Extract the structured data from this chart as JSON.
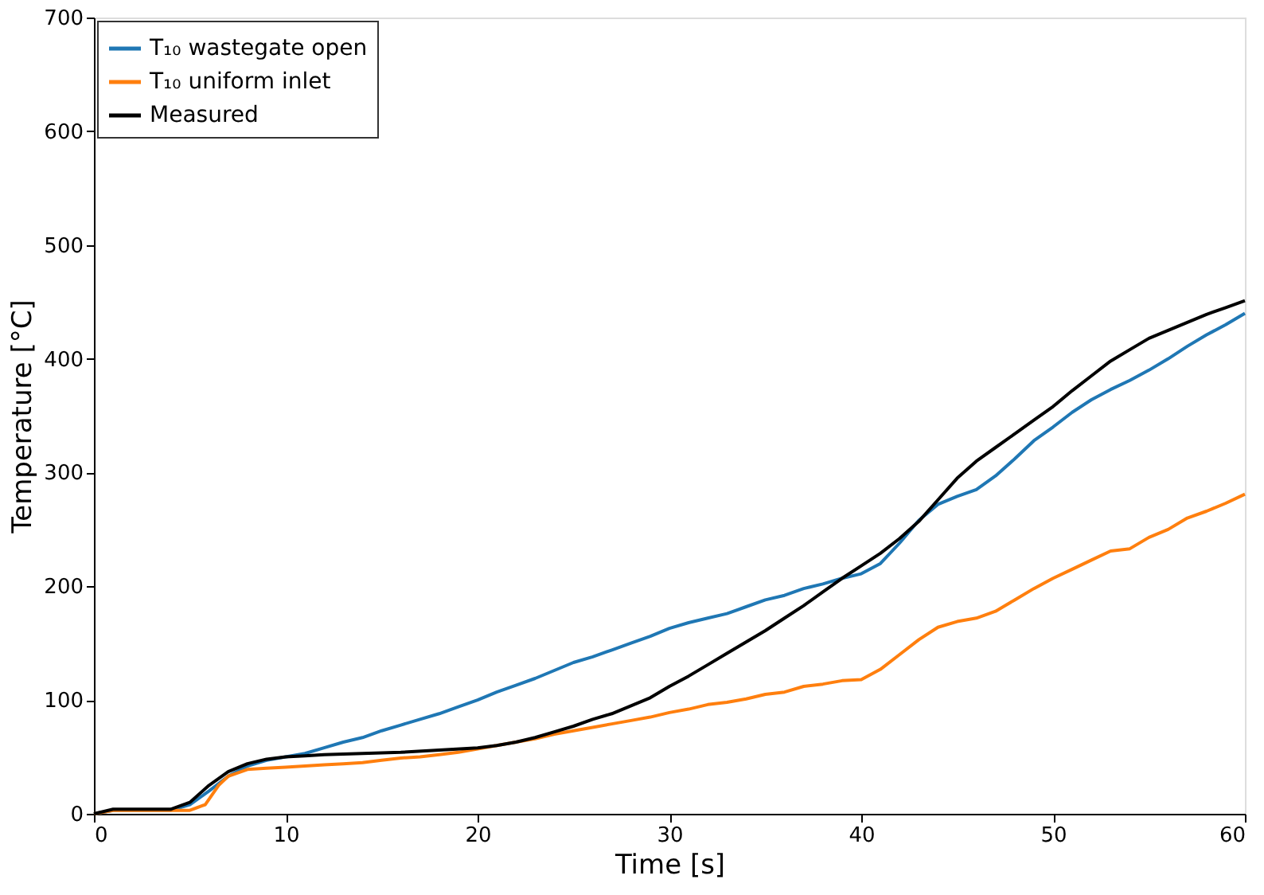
{
  "chart_data": {
    "type": "line",
    "xlabel": "Time [s]",
    "ylabel": "Temperature [°C]",
    "xlim": [
      0,
      60
    ],
    "xticks": [
      0,
      10,
      20,
      30,
      40,
      50,
      60
    ],
    "ylim": [
      0,
      700
    ],
    "yticks": [
      0,
      100,
      200,
      300,
      400,
      500,
      600,
      700
    ],
    "grid": false,
    "legend": "top left",
    "marker": "none",
    "line_style": "solid",
    "series": [
      {
        "name": "T₁₀ wastegate open",
        "color": "#1f77b4",
        "x": [
          0,
          1,
          4,
          5,
          6,
          7,
          8,
          9,
          10,
          11,
          12,
          13,
          14,
          15,
          16,
          17,
          18,
          19,
          20,
          21,
          22,
          23,
          24,
          25,
          26,
          27,
          28,
          29,
          30,
          31,
          32,
          33,
          34,
          35,
          36,
          37,
          38,
          39,
          40,
          41,
          42,
          43,
          44,
          45,
          46,
          47,
          48,
          49,
          50,
          51,
          52,
          53,
          54,
          55,
          56,
          57,
          58,
          59,
          60
        ],
        "values": [
          0,
          3,
          3,
          8,
          20,
          33,
          42,
          47,
          50,
          53,
          58,
          63,
          67,
          73,
          78,
          83,
          88,
          94,
          100,
          107,
          113,
          119,
          126,
          133,
          138,
          144,
          150,
          156,
          163,
          168,
          172,
          176,
          182,
          188,
          192,
          198,
          202,
          207,
          211,
          220,
          238,
          258,
          272,
          279,
          285,
          297,
          312,
          328,
          340,
          353,
          364,
          373,
          381,
          390,
          400,
          411,
          421,
          430,
          440
        ]
      },
      {
        "name": "T₁₀ uniform inlet",
        "color": "#ff7f0e",
        "x": [
          0,
          1,
          4,
          5,
          5.8,
          6.5,
          7,
          8,
          9,
          10,
          11,
          12,
          13,
          14,
          15,
          16,
          17,
          18,
          19,
          20,
          21,
          22,
          23,
          24,
          25,
          26,
          27,
          28,
          29,
          30,
          31,
          32,
          33,
          34,
          35,
          36,
          37,
          38,
          39,
          40,
          41,
          42,
          43,
          44,
          45,
          46,
          47,
          48,
          49,
          50,
          51,
          52,
          53,
          54,
          55,
          56,
          57,
          58,
          59,
          60
        ],
        "values": [
          0,
          3,
          3,
          3,
          8,
          25,
          33,
          39,
          40,
          41,
          42,
          43,
          44,
          45,
          47,
          49,
          50,
          52,
          54,
          57,
          60,
          63,
          66,
          70,
          73,
          76,
          79,
          82,
          85,
          89,
          92,
          96,
          98,
          101,
          105,
          107,
          112,
          114,
          117,
          118,
          127,
          140,
          153,
          164,
          169,
          172,
          178,
          188,
          198,
          207,
          215,
          223,
          231,
          233,
          243,
          250,
          260,
          266,
          273,
          281
        ]
      },
      {
        "name": "Measured",
        "color": "#000000",
        "x": [
          0,
          1,
          4,
          5,
          6,
          7,
          8,
          9,
          10,
          11,
          12,
          14,
          16,
          18,
          20,
          21,
          22,
          23,
          24,
          25,
          26,
          27,
          28,
          29,
          30,
          31,
          32,
          33,
          34,
          35,
          36,
          37,
          38,
          39,
          40,
          41,
          42,
          43,
          44,
          45,
          46,
          47,
          48,
          49,
          50,
          51,
          52,
          53,
          54,
          55,
          56,
          57,
          58,
          59,
          60
        ],
        "values": [
          0,
          4,
          4,
          10,
          25,
          37,
          44,
          48,
          50,
          51,
          52,
          53,
          54,
          56,
          58,
          60,
          63,
          67,
          72,
          77,
          83,
          88,
          95,
          102,
          112,
          121,
          131,
          141,
          151,
          161,
          172,
          183,
          195,
          207,
          218,
          229,
          242,
          257,
          276,
          295,
          310,
          322,
          334,
          346,
          358,
          372,
          385,
          398,
          408,
          418,
          425,
          432,
          439,
          445,
          451
        ]
      }
    ]
  }
}
